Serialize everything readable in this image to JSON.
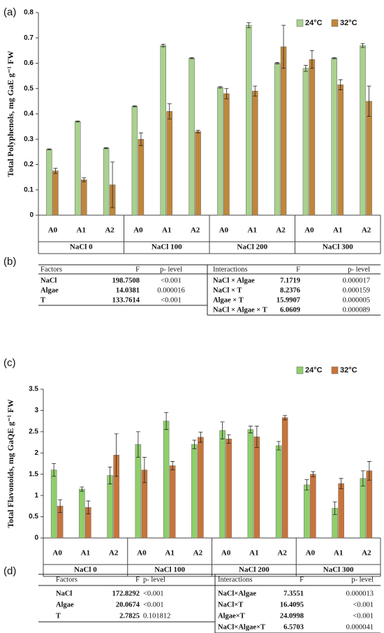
{
  "chart_data": [
    {
      "type": "bar",
      "panel": "(a)",
      "ylabel": "Total Polyphenols, mg GaE g⁻¹ FW",
      "categories": [
        "A0",
        "A1",
        "A2",
        "A0",
        "A1",
        "A2",
        "A0",
        "A1",
        "A2",
        "A0",
        "A1",
        "A2"
      ],
      "groups": [
        "NaCl 0",
        "NaCl 100",
        "NaCl 200",
        "NaCl 300"
      ],
      "series": [
        {
          "name": "24°C",
          "color": "#a9d18e",
          "values": [
            0.26,
            0.37,
            0.265,
            0.43,
            0.67,
            0.62,
            0.505,
            0.75,
            0.6,
            0.58,
            0.62,
            0.67
          ],
          "errors": [
            0.002,
            0.002,
            0.002,
            0.002,
            0.005,
            0.002,
            0.003,
            0.01,
            0.003,
            0.012,
            0.002,
            0.008
          ]
        },
        {
          "name": "32°C",
          "color": "#c0863a",
          "values": [
            0.175,
            0.14,
            0.12,
            0.3,
            0.41,
            0.33,
            0.48,
            0.49,
            0.665,
            0.615,
            0.515,
            0.45
          ],
          "errors": [
            0.01,
            0.008,
            0.09,
            0.025,
            0.03,
            0.005,
            0.02,
            0.02,
            0.085,
            0.035,
            0.02,
            0.06
          ]
        }
      ],
      "ylim": [
        0,
        0.8
      ],
      "yticks": [
        0,
        0.1,
        0.2,
        0.3,
        0.4,
        0.5,
        0.6,
        0.7,
        0.8
      ],
      "legend": "upper right"
    },
    {
      "type": "bar",
      "panel": "(c)",
      "ylabel": "Total Flavonoids, mg GaQE g⁻¹ FW",
      "categories": [
        "A0",
        "A1",
        "A2",
        "A0",
        "A1",
        "A2",
        "A0",
        "A1",
        "A2",
        "A0",
        "A1",
        "A2"
      ],
      "groups": [
        "NaCl 0",
        "NaCl 100",
        "NaCl 200",
        "NaCl 300"
      ],
      "series": [
        {
          "name": "24°C",
          "color": "#8fcf6a",
          "values": [
            1.6,
            1.15,
            1.47,
            2.2,
            2.75,
            2.2,
            2.53,
            2.55,
            2.17,
            1.25,
            0.7,
            1.4
          ],
          "errors": [
            0.15,
            0.05,
            0.2,
            0.3,
            0.2,
            0.1,
            0.2,
            0.08,
            0.1,
            0.12,
            0.15,
            0.18
          ]
        },
        {
          "name": "32°C",
          "color": "#c8743a",
          "values": [
            0.75,
            0.72,
            1.95,
            1.6,
            1.7,
            2.37,
            2.33,
            2.38,
            2.83,
            1.5,
            1.28,
            1.58
          ],
          "errors": [
            0.15,
            0.15,
            0.5,
            0.3,
            0.1,
            0.12,
            0.1,
            0.25,
            0.05,
            0.06,
            0.12,
            0.22
          ]
        }
      ],
      "ylim": [
        0,
        3.5
      ],
      "yticks": [
        0,
        0.5,
        1,
        1.5,
        2,
        2.5,
        3,
        3.5
      ],
      "legend": "upper right"
    }
  ],
  "tables": [
    {
      "panel": "(b)",
      "left": {
        "header": [
          "Factors",
          "F",
          "p- level"
        ],
        "rows": [
          [
            "NaCl",
            "198.7508",
            "<0.001"
          ],
          [
            "Algae",
            "14.0381",
            "0.000016"
          ],
          [
            "T",
            "133.7614",
            "<0.001"
          ]
        ]
      },
      "right": {
        "header": [
          "Interactions",
          "F",
          "p- level"
        ],
        "rows": [
          [
            "NaCl × Algae",
            "7.1719",
            "0.000017"
          ],
          [
            "NaCl × T",
            "8.2376",
            "0.000159"
          ],
          [
            "Algae × T",
            "15.9907",
            "0.000005"
          ],
          [
            "NaCl × Algae × T",
            "6.0609",
            "0.000089"
          ]
        ]
      }
    },
    {
      "panel": "(d)",
      "left": {
        "header": [
          "Factors",
          "F",
          "p- level"
        ],
        "rows": [
          [
            "NaCl",
            "172.8292",
            "<0.001"
          ],
          [
            "Algae",
            "20.0674",
            "<0.001"
          ],
          [
            "T",
            "2.7825",
            "0.101812"
          ]
        ]
      },
      "right": {
        "header": [
          "Interactions",
          "F",
          "p- level"
        ],
        "rows": [
          [
            "NaCl×Algae",
            "7.3551",
            "0.000013"
          ],
          [
            "NaCl×T",
            "16.4095",
            "<0.001"
          ],
          [
            "Algae×T",
            "24.0998",
            "<0.001"
          ],
          [
            "NaCl×Algae×T",
            "6.5703",
            "0.000041"
          ]
        ]
      }
    }
  ]
}
